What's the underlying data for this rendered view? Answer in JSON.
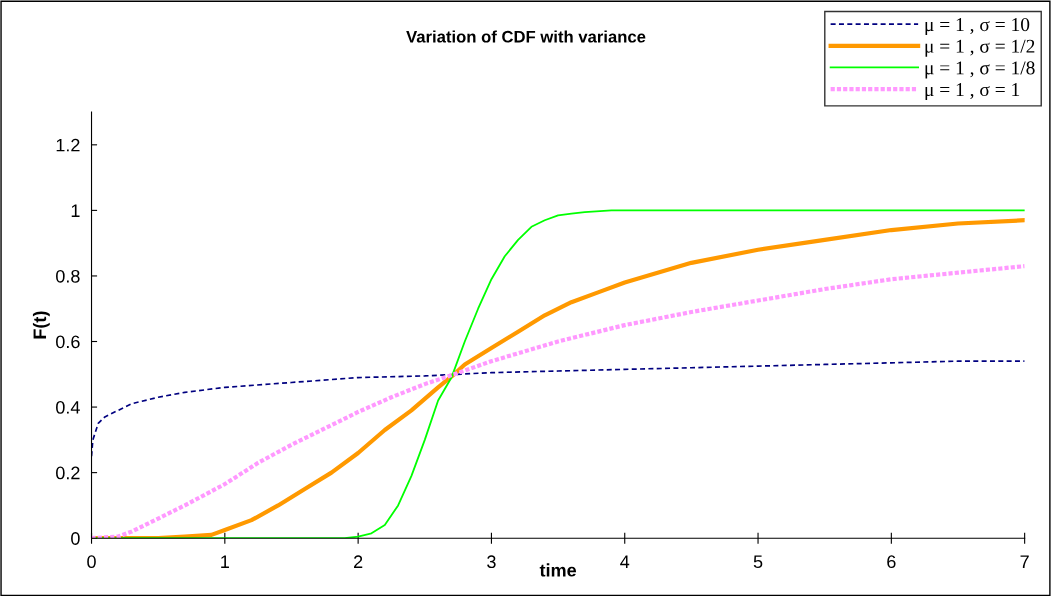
{
  "chart_data": {
    "type": "line",
    "title": "Variation of CDF with variance",
    "xlabel": "time",
    "ylabel": "F(t)",
    "xlim": [
      0,
      7
    ],
    "xticks": [
      0,
      1,
      2,
      3,
      4,
      5,
      6,
      7
    ],
    "ylim": [
      0,
      1.3
    ],
    "yticks": [
      0,
      0.2,
      0.4,
      0.6,
      0.8,
      1,
      1.2
    ],
    "grid": false,
    "legend": "top right",
    "marker": "none",
    "series": [
      {
        "name": "μ = 1 , σ = 10",
        "color": "#000080",
        "line_style": "dashed",
        "x": [
          0,
          0.01,
          0.05,
          0.1,
          0.2,
          0.3,
          0.5,
          0.7,
          1,
          1.5,
          2,
          2.5,
          3,
          3.5,
          4,
          4.5,
          5,
          5.5,
          6,
          6.5,
          7
        ],
        "values": [
          0.25,
          0.3,
          0.35,
          0.37,
          0.39,
          0.41,
          0.43,
          0.445,
          0.46,
          0.475,
          0.49,
          0.495,
          0.505,
          0.51,
          0.515,
          0.52,
          0.525,
          0.53,
          0.535,
          0.54,
          0.54
        ]
      },
      {
        "name": "μ = 1 , σ = 1/2",
        "color": "#ff9900",
        "line_style": "solid",
        "x": [
          0,
          0.5,
          0.7,
          0.9,
          1,
          1.2,
          1.4,
          1.6,
          1.8,
          2,
          2.2,
          2.4,
          2.6,
          2.72,
          2.8,
          3,
          3.2,
          3.4,
          3.6,
          3.8,
          4,
          4.5,
          5,
          5.5,
          6,
          6.5,
          7
        ],
        "values": [
          0,
          0,
          0.005,
          0.01,
          0.025,
          0.055,
          0.1,
          0.15,
          0.2,
          0.26,
          0.33,
          0.39,
          0.46,
          0.5,
          0.53,
          0.58,
          0.63,
          0.68,
          0.72,
          0.75,
          0.78,
          0.84,
          0.88,
          0.91,
          0.94,
          0.96,
          0.97
        ]
      },
      {
        "name": "μ = 1 , σ = 1/8",
        "color": "#00ff00",
        "line_style": "solid",
        "x": [
          0,
          1.9,
          2,
          2.1,
          2.2,
          2.3,
          2.4,
          2.5,
          2.6,
          2.7,
          2.8,
          2.9,
          3,
          3.1,
          3.2,
          3.3,
          3.4,
          3.5,
          3.6,
          3.7,
          3.9,
          7
        ],
        "values": [
          0,
          0,
          0.005,
          0.015,
          0.04,
          0.1,
          0.19,
          0.3,
          0.42,
          0.49,
          0.6,
          0.7,
          0.79,
          0.86,
          0.91,
          0.95,
          0.97,
          0.985,
          0.99,
          0.995,
          1,
          1
        ]
      },
      {
        "name": "μ = 1 , σ = 1",
        "color": "#ff99ff",
        "line_style": "dotted",
        "x": [
          0,
          0.2,
          0.3,
          0.5,
          0.7,
          1,
          1.25,
          1.5,
          1.75,
          2,
          2.25,
          2.5,
          2.72,
          3,
          3.5,
          4,
          4.5,
          5,
          5.5,
          6,
          6.5,
          7
        ],
        "values": [
          0,
          0.005,
          0.02,
          0.06,
          0.1,
          0.165,
          0.23,
          0.285,
          0.335,
          0.385,
          0.43,
          0.47,
          0.5,
          0.54,
          0.6,
          0.65,
          0.69,
          0.725,
          0.76,
          0.79,
          0.81,
          0.83
        ]
      }
    ]
  }
}
